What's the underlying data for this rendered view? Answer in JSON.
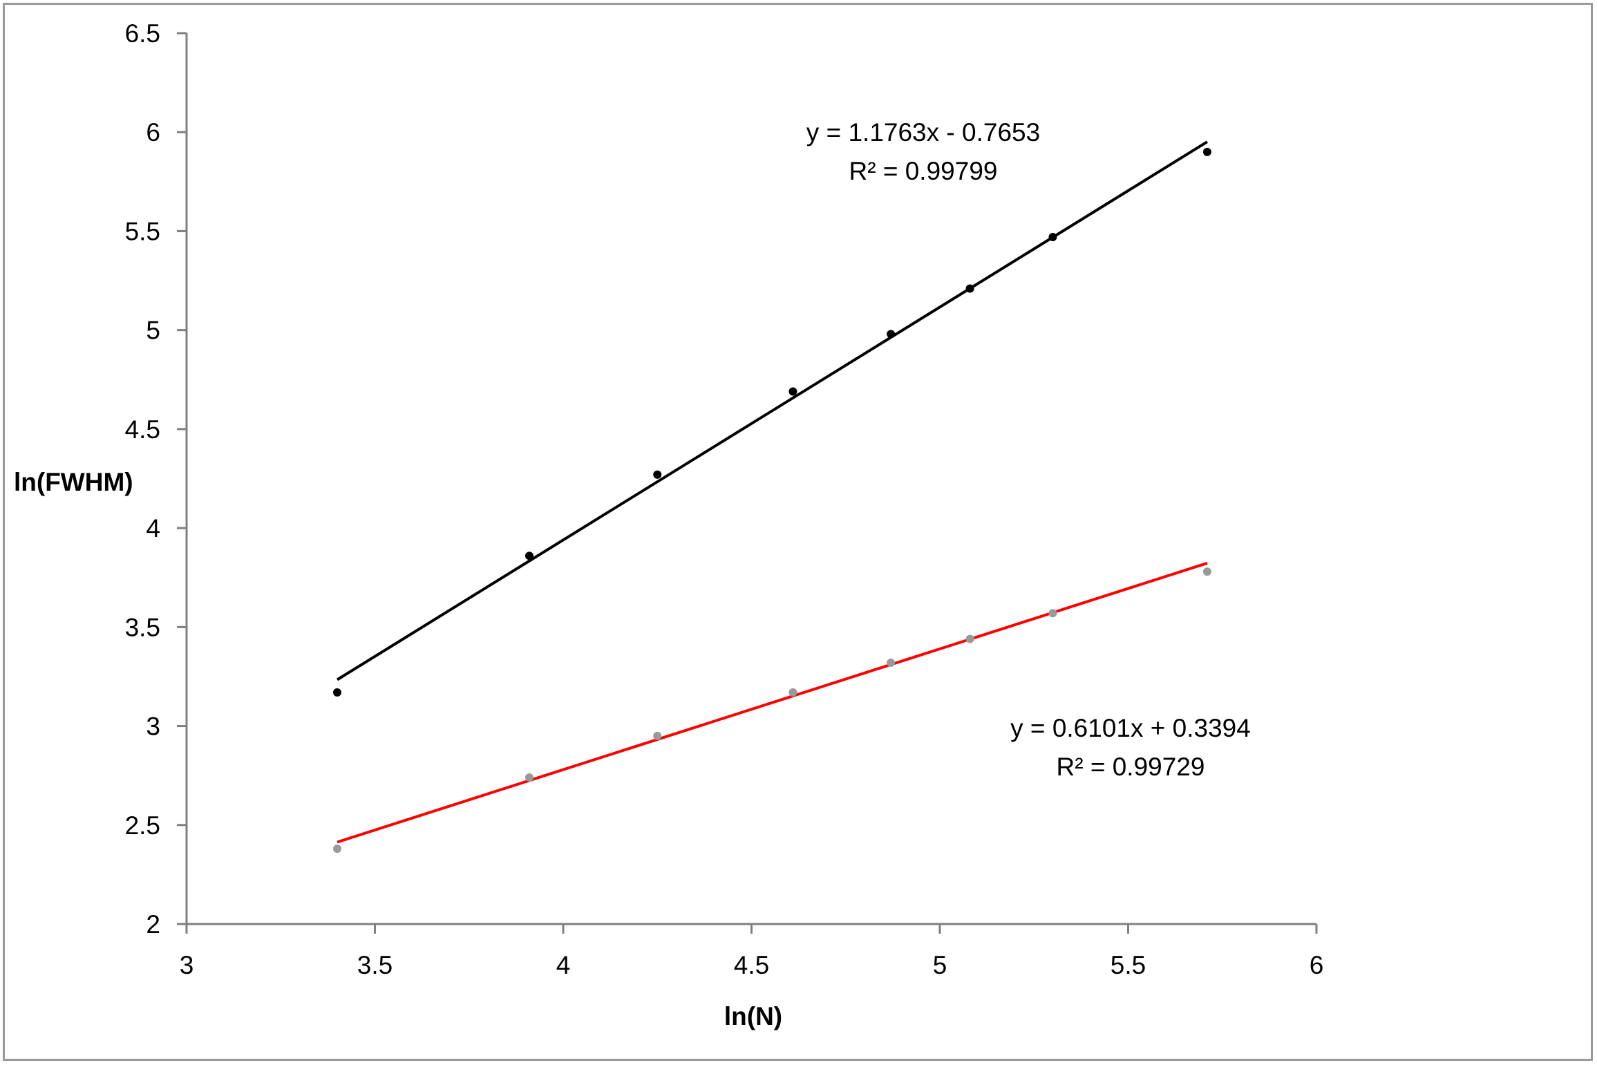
{
  "chart_data": {
    "type": "scatter",
    "xlabel": "ln(N)",
    "ylabel": "ln(FWHM)",
    "xlim": [
      3,
      6
    ],
    "ylim": [
      2,
      6.5
    ],
    "x_ticks": [
      "3",
      "3.5",
      "4",
      "4.5",
      "5",
      "5.5",
      "6"
    ],
    "y_ticks": [
      "2",
      "2.5",
      "3",
      "3.5",
      "4",
      "4.5",
      "5",
      "5.5",
      "6",
      "6.5"
    ],
    "grid": false,
    "legend": false,
    "series": [
      {
        "color": "#000000",
        "x": [
          3.4,
          3.91,
          4.25,
          4.61,
          4.87,
          5.08,
          5.3,
          5.71
        ],
        "y": [
          3.17,
          3.86,
          4.27,
          4.69,
          4.98,
          5.21,
          5.47,
          5.9
        ],
        "trendline": {
          "slope": 1.1763,
          "intercept": -0.7653,
          "color": "#000000"
        },
        "equation": "y = 1.1763x - 0.7653",
        "r2_label": "R² = 0.99799"
      },
      {
        "color": "#999999",
        "x": [
          3.4,
          3.91,
          4.25,
          4.61,
          4.87,
          5.08,
          5.3,
          5.71
        ],
        "y": [
          2.38,
          2.74,
          2.95,
          3.17,
          3.32,
          3.44,
          3.57,
          3.78
        ],
        "trendline": {
          "slope": 0.6101,
          "intercept": 0.3394,
          "color": "#ff0000"
        },
        "equation": "y = 0.6101x + 0.3394",
        "r2_label": "R² = 0.99729"
      }
    ]
  }
}
